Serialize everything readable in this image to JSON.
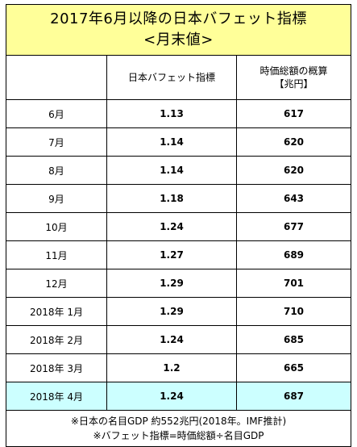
{
  "title": {
    "line1": "2017年6月以降の日本バフェット指標",
    "line2": "<月末値>"
  },
  "columns": {
    "month": "",
    "buffett": "日本バフェット指標",
    "market_cap_line1": "時価総額の概算",
    "market_cap_line2": "【兆円】"
  },
  "rows": [
    {
      "month": "6月",
      "buffett": "1.13",
      "market_cap": "617",
      "highlight": false
    },
    {
      "month": "7月",
      "buffett": "1.14",
      "market_cap": "620",
      "highlight": false
    },
    {
      "month": "8月",
      "buffett": "1.14",
      "market_cap": "620",
      "highlight": false
    },
    {
      "month": "9月",
      "buffett": "1.18",
      "market_cap": "643",
      "highlight": false
    },
    {
      "month": "10月",
      "buffett": "1.24",
      "market_cap": "677",
      "highlight": false
    },
    {
      "month": "11月",
      "buffett": "1.27",
      "market_cap": "689",
      "highlight": false
    },
    {
      "month": "12月",
      "buffett": "1.29",
      "market_cap": "701",
      "highlight": false
    },
    {
      "month": "2018年 1月",
      "buffett": "1.29",
      "market_cap": "710",
      "highlight": false
    },
    {
      "month": "2018年 2月",
      "buffett": "1.24",
      "market_cap": "685",
      "highlight": false
    },
    {
      "month": "2018年 3月",
      "buffett": "1.2",
      "market_cap": "665",
      "highlight": false
    },
    {
      "month": "2018年 4月",
      "buffett": "1.24",
      "market_cap": "687",
      "highlight": true
    }
  ],
  "notes": {
    "line1": "※日本の名目GDP 約552兆円(2018年。IMF推計)",
    "line2": "※バフェット指標=時価総額÷名目GDP"
  },
  "colors": {
    "title_background": "#ffff99",
    "highlight_row_background": "#ccffff",
    "border": "#000000"
  }
}
